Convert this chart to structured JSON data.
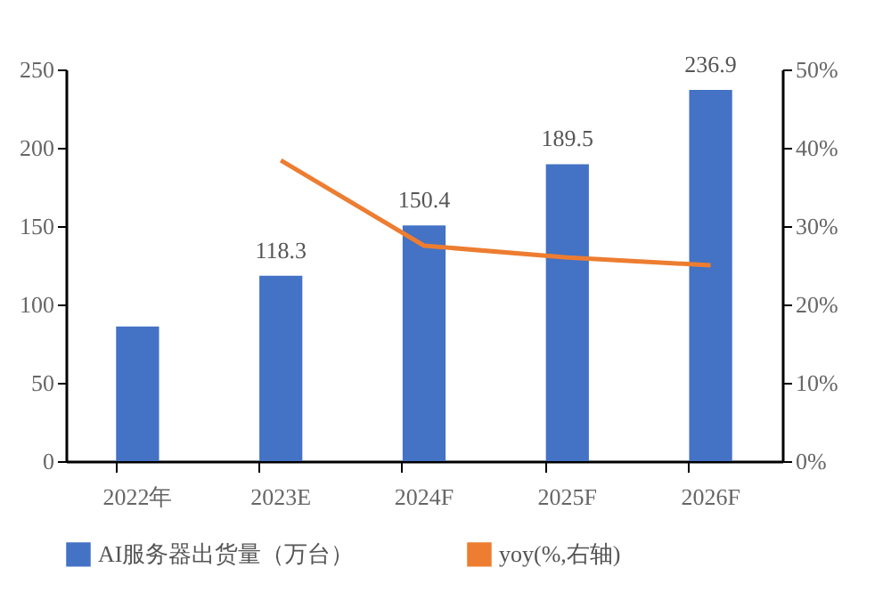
{
  "chart_data": {
    "type": "bar",
    "categories": [
      "2022年",
      "2023E",
      "2024F",
      "2025F",
      "2026F"
    ],
    "series": [
      {
        "name": "AI服务器出货量（万台）",
        "color": "#4472c4",
        "values": [
          86,
          118.3,
          150.4,
          189.5,
          236.9
        ],
        "value_labels": [
          null,
          "118.3",
          "150.4",
          "189.5",
          "236.9"
        ]
      },
      {
        "name": "yoy(%,右轴)",
        "type": "line",
        "axis": "y2",
        "color": "#ed7d31",
        "values": [
          null,
          38.4,
          27.5,
          26,
          25
        ]
      }
    ],
    "ylim": [
      0,
      250
    ],
    "yticks": [
      0,
      50,
      100,
      150,
      200,
      250
    ],
    "y2lim": [
      0,
      50
    ],
    "y2ticks": [
      {
        "value": 0,
        "label": "0%"
      },
      {
        "value": 10,
        "label": "10%"
      },
      {
        "value": 20,
        "label": "20%"
      },
      {
        "value": 30,
        "label": "30%"
      },
      {
        "value": 40,
        "label": "40%"
      },
      {
        "value": 50,
        "label": "50%"
      }
    ],
    "grid": false,
    "legend": "bottom"
  }
}
